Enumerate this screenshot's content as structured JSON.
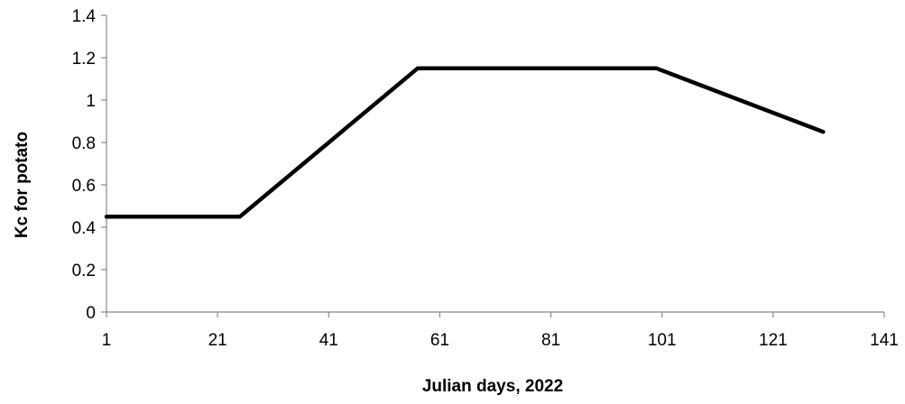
{
  "chart_data": {
    "type": "line",
    "title": "",
    "xlabel": "Julian days, 2022",
    "ylabel": "Kc for potato",
    "xlim": [
      1,
      141
    ],
    "ylim": [
      0,
      1.4
    ],
    "x_ticks": [
      1,
      21,
      41,
      61,
      81,
      101,
      121,
      141
    ],
    "y_ticks": [
      0,
      0.2,
      0.4,
      0.6,
      0.8,
      1,
      1.2,
      1.4
    ],
    "x_tick_labels": [
      "1",
      "21",
      "41",
      "61",
      "81",
      "101",
      "121",
      "141"
    ],
    "y_tick_labels": [
      "0",
      "0.2",
      "0.4",
      "0.6",
      "0.8",
      "1",
      "1.2",
      "1.4"
    ],
    "grid": false,
    "legend": "none",
    "series": [
      {
        "color": "#000000",
        "x": [
          1,
          25,
          57,
          100,
          130
        ],
        "y": [
          0.45,
          0.45,
          1.15,
          1.15,
          0.85
        ]
      }
    ]
  }
}
